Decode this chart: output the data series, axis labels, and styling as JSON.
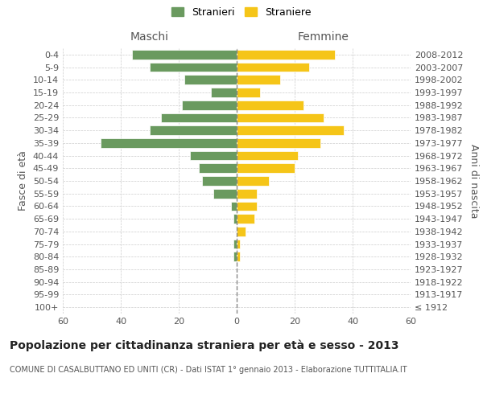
{
  "age_groups": [
    "100+",
    "95-99",
    "90-94",
    "85-89",
    "80-84",
    "75-79",
    "70-74",
    "65-69",
    "60-64",
    "55-59",
    "50-54",
    "45-49",
    "40-44",
    "35-39",
    "30-34",
    "25-29",
    "20-24",
    "15-19",
    "10-14",
    "5-9",
    "0-4"
  ],
  "birth_years": [
    "≤ 1912",
    "1913-1917",
    "1918-1922",
    "1923-1927",
    "1928-1932",
    "1933-1937",
    "1938-1942",
    "1943-1947",
    "1948-1952",
    "1953-1957",
    "1958-1962",
    "1963-1967",
    "1968-1972",
    "1973-1977",
    "1978-1982",
    "1983-1987",
    "1988-1992",
    "1993-1997",
    "1998-2002",
    "2003-2007",
    "2008-2012"
  ],
  "maschi": [
    0,
    0,
    0,
    0,
    1,
    1,
    0,
    1,
    2,
    8,
    12,
    13,
    16,
    47,
    30,
    26,
    19,
    9,
    18,
    30,
    36
  ],
  "femmine": [
    0,
    0,
    0,
    0,
    1,
    1,
    3,
    6,
    7,
    7,
    11,
    20,
    21,
    29,
    37,
    30,
    23,
    8,
    15,
    25,
    34
  ],
  "male_color": "#6a9a5f",
  "female_color": "#f5c518",
  "bar_edge_color": "white",
  "background_color": "#ffffff",
  "grid_color": "#cccccc",
  "xlim": 60,
  "title": "Popolazione per cittadinanza straniera per età e sesso - 2013",
  "subtitle": "COMUNE DI CASALBUTTANO ED UNITI (CR) - Dati ISTAT 1° gennaio 2013 - Elaborazione TUTTITALIA.IT",
  "ylabel_left": "Fasce di età",
  "ylabel_right": "Anni di nascita",
  "xlabel_maschi": "Maschi",
  "xlabel_femmine": "Femmine",
  "legend_stranieri": "Stranieri",
  "legend_straniere": "Straniere",
  "title_fontsize": 10,
  "subtitle_fontsize": 7,
  "label_fontsize": 9,
  "tick_fontsize": 8,
  "header_fontsize": 10
}
